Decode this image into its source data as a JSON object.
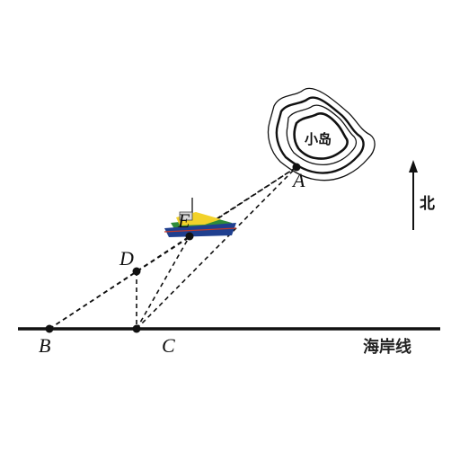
{
  "labels": {
    "A": "A",
    "B": "B",
    "C": "C",
    "D": "D",
    "E": "E",
    "island": "小岛",
    "north": "北",
    "coast": "海岸线"
  },
  "icons": {
    "ship": "ship-icon",
    "island": "island-contour-icon",
    "north_arrow": "north-arrow-icon"
  },
  "colors": {
    "line": "#111111",
    "ship_hull": "#1f3f8f",
    "ship_deck": "#f2d22a",
    "ship_trim": "#2e8b3a"
  }
}
